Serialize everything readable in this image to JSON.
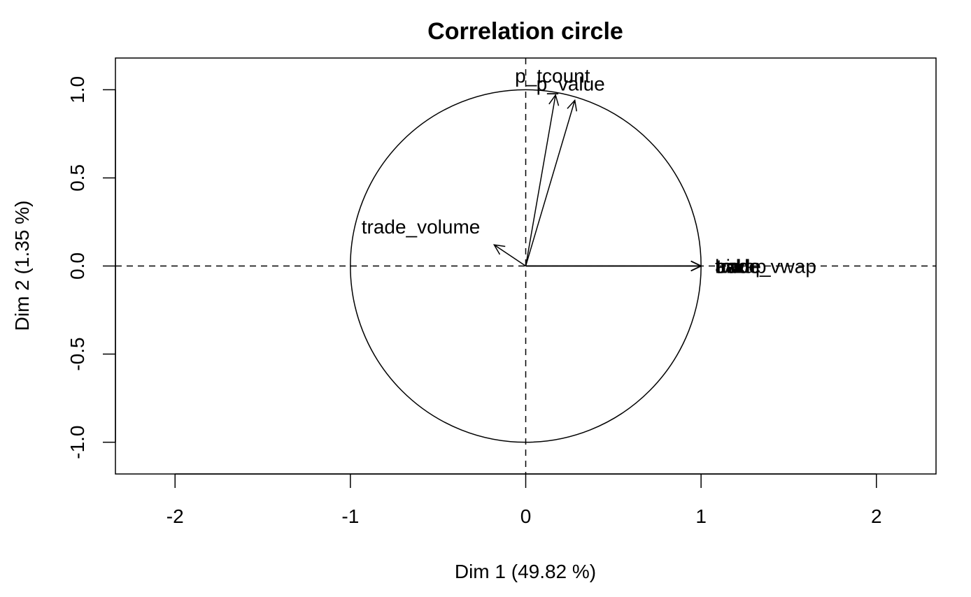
{
  "chart_data": {
    "type": "scatter",
    "title": "Correlation circle",
    "xlabel": "Dim 1 (49.82 %)",
    "ylabel": "Dim 2 (1.35 %)",
    "xlim": [
      -2.34,
      2.34
    ],
    "ylim": [
      -1.18,
      1.18
    ],
    "x_ticks": [
      "-2",
      "-1",
      "0",
      "1",
      "2"
    ],
    "y_ticks": [
      "-1.0",
      "-0.5",
      "0.0",
      "0.5",
      "1.0"
    ],
    "x_tick_values": [
      -2,
      -1,
      0,
      1,
      2
    ],
    "y_tick_values": [
      -1.0,
      -0.5,
      0.0,
      0.5,
      1.0
    ],
    "grid": false,
    "unit_circle": true,
    "reference_lines": [
      "x=0",
      "y=0"
    ],
    "variables": [
      {
        "name": "p_tcount",
        "x": 0.17,
        "y": 0.97
      },
      {
        "name": "p_value",
        "x": 0.28,
        "y": 0.94
      },
      {
        "name": "trade_volume",
        "x": -0.18,
        "y": 0.12
      },
      {
        "name": "bid",
        "x": 1.0,
        "y": 0.0
      },
      {
        "name": "ask",
        "x": 1.0,
        "y": 0.0
      },
      {
        "name": "trade",
        "x": 1.0,
        "y": 0.0
      },
      {
        "name": "vwap",
        "x": 1.0,
        "y": 0.0
      },
      {
        "name": "trade_vwap",
        "x": 1.0,
        "y": 0.0
      }
    ]
  }
}
